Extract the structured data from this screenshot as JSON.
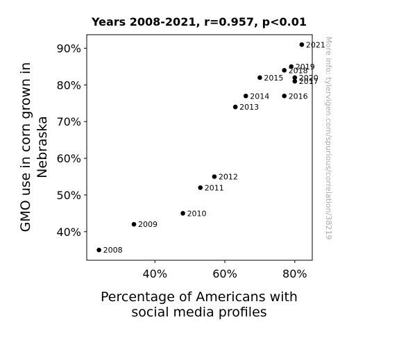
{
  "chart_data": {
    "type": "scatter",
    "title": "Years 2008-2021, r=0.957, p<0.01",
    "xlabel": [
      "Percentage of Americans with",
      "social media profiles"
    ],
    "ylabel": [
      "GMO use in corn grown in",
      "Nebraska"
    ],
    "xlim": [
      0.205,
      0.85
    ],
    "ylim": [
      0.322,
      0.937
    ],
    "x_ticks": [
      0.4,
      0.6,
      0.8
    ],
    "x_tick_labels": [
      "40%",
      "60%",
      "80%"
    ],
    "y_ticks": [
      0.4,
      0.5,
      0.6,
      0.7,
      0.8,
      0.9
    ],
    "y_tick_labels": [
      "40%",
      "50%",
      "60%",
      "70%",
      "80%",
      "90%"
    ],
    "grid": false,
    "points": [
      {
        "label": "2008",
        "x": 0.24,
        "y": 0.35
      },
      {
        "label": "2009",
        "x": 0.34,
        "y": 0.42
      },
      {
        "label": "2010",
        "x": 0.48,
        "y": 0.45
      },
      {
        "label": "2011",
        "x": 0.53,
        "y": 0.52
      },
      {
        "label": "2012",
        "x": 0.57,
        "y": 0.55
      },
      {
        "label": "2013",
        "x": 0.63,
        "y": 0.74
      },
      {
        "label": "2014",
        "x": 0.66,
        "y": 0.77
      },
      {
        "label": "2015",
        "x": 0.7,
        "y": 0.82
      },
      {
        "label": "2016",
        "x": 0.77,
        "y": 0.77
      },
      {
        "label": "2017",
        "x": 0.8,
        "y": 0.81
      },
      {
        "label": "2018",
        "x": 0.77,
        "y": 0.84
      },
      {
        "label": "2019",
        "x": 0.79,
        "y": 0.85
      },
      {
        "label": "2020",
        "x": 0.8,
        "y": 0.82
      },
      {
        "label": "2021",
        "x": 0.82,
        "y": 0.91
      }
    ],
    "point_color": "#000000",
    "watermark": "More info: tylervigen.com/spurious/correlation/38219"
  }
}
